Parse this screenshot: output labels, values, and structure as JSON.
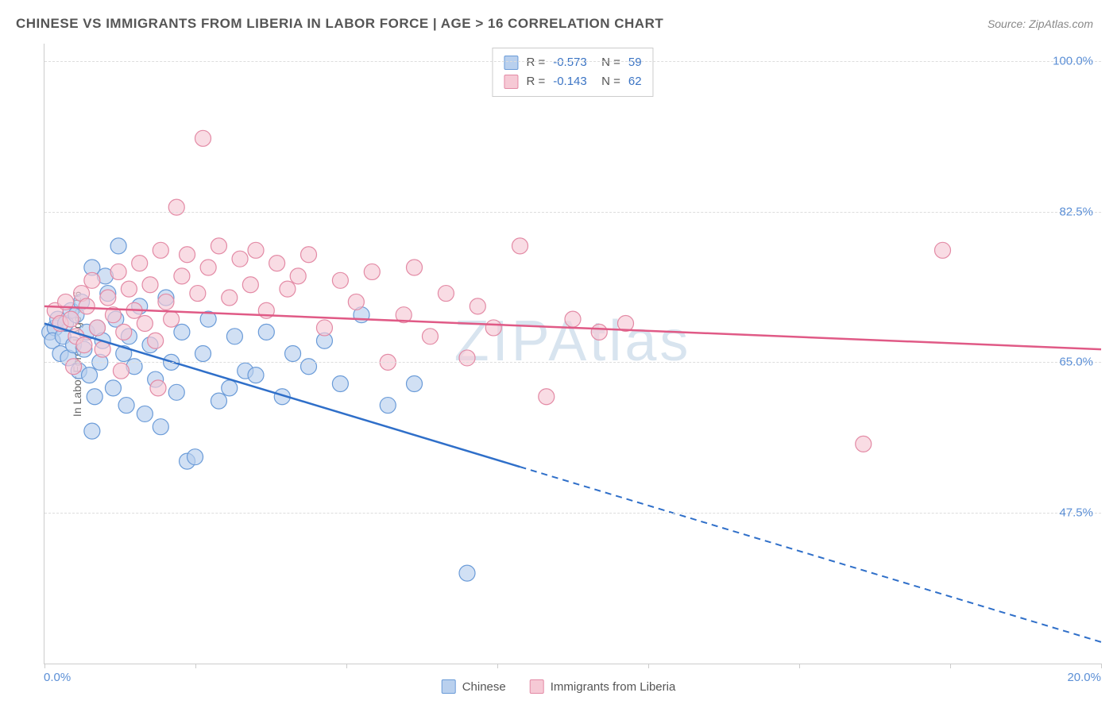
{
  "title": "CHINESE VS IMMIGRANTS FROM LIBERIA IN LABOR FORCE | AGE > 16 CORRELATION CHART",
  "source": "Source: ZipAtlas.com",
  "watermark": "ZIPAtlas",
  "y_axis_title": "In Labor Force | Age > 16",
  "chart": {
    "type": "scatter",
    "xlim": [
      0,
      20
    ],
    "ylim": [
      30,
      102
    ],
    "x_ticks": [
      0,
      2.86,
      5.71,
      8.57,
      11.43,
      14.29,
      17.14,
      20
    ],
    "x_labels": {
      "0": "0.0%",
      "20": "20.0%"
    },
    "y_gridlines": [
      47.5,
      65.0,
      82.5,
      100.0
    ],
    "y_labels": [
      "47.5%",
      "65.0%",
      "82.5%",
      "100.0%"
    ],
    "background_color": "#ffffff",
    "grid_color": "#dddddd",
    "axis_color": "#cccccc",
    "label_color": "#5b8fd6",
    "series": [
      {
        "name": "Chinese",
        "color_fill": "#b9d0ee",
        "color_stroke": "#6a9bd8",
        "line_color": "#2f6fc9",
        "marker_radius": 10,
        "marker_opacity": 0.65,
        "R": "-0.573",
        "N": "59",
        "trend": {
          "x1": 0,
          "y1": 69.5,
          "x2": 20,
          "y2": 32.5,
          "solid_until_x": 9.0
        },
        "points": [
          [
            0.1,
            68.5
          ],
          [
            0.2,
            69.0
          ],
          [
            0.15,
            67.5
          ],
          [
            0.25,
            70.0
          ],
          [
            0.3,
            66.0
          ],
          [
            0.35,
            68.0
          ],
          [
            0.4,
            69.5
          ],
          [
            0.45,
            65.5
          ],
          [
            0.5,
            71.0
          ],
          [
            0.55,
            67.0
          ],
          [
            0.6,
            70.5
          ],
          [
            0.65,
            64.0
          ],
          [
            0.7,
            72.0
          ],
          [
            0.75,
            66.5
          ],
          [
            0.8,
            68.5
          ],
          [
            0.85,
            63.5
          ],
          [
            0.9,
            76.0
          ],
          [
            0.95,
            61.0
          ],
          [
            1.0,
            69.0
          ],
          [
            1.05,
            65.0
          ],
          [
            1.1,
            67.5
          ],
          [
            1.2,
            73.0
          ],
          [
            1.3,
            62.0
          ],
          [
            1.35,
            70.0
          ],
          [
            1.4,
            78.5
          ],
          [
            1.5,
            66.0
          ],
          [
            1.55,
            60.0
          ],
          [
            1.6,
            68.0
          ],
          [
            1.7,
            64.5
          ],
          [
            1.8,
            71.5
          ],
          [
            1.9,
            59.0
          ],
          [
            2.0,
            67.0
          ],
          [
            2.1,
            63.0
          ],
          [
            2.2,
            57.5
          ],
          [
            2.3,
            72.5
          ],
          [
            2.4,
            65.0
          ],
          [
            2.5,
            61.5
          ],
          [
            2.6,
            68.5
          ],
          [
            2.7,
            53.5
          ],
          [
            2.85,
            54.0
          ],
          [
            3.0,
            66.0
          ],
          [
            3.1,
            70.0
          ],
          [
            3.3,
            60.5
          ],
          [
            3.5,
            62.0
          ],
          [
            3.6,
            68.0
          ],
          [
            3.8,
            64.0
          ],
          [
            4.0,
            63.5
          ],
          [
            4.2,
            68.5
          ],
          [
            4.5,
            61.0
          ],
          [
            4.7,
            66.0
          ],
          [
            5.0,
            64.5
          ],
          [
            5.3,
            67.5
          ],
          [
            5.6,
            62.5
          ],
          [
            6.0,
            70.5
          ],
          [
            6.5,
            60.0
          ],
          [
            7.0,
            62.5
          ],
          [
            8.0,
            40.5
          ],
          [
            0.9,
            57.0
          ],
          [
            1.15,
            75.0
          ]
        ]
      },
      {
        "name": "Immigrants from Liberia",
        "color_fill": "#f6c9d5",
        "color_stroke": "#e38aa5",
        "line_color": "#e05a86",
        "marker_radius": 10,
        "marker_opacity": 0.65,
        "R": "-0.143",
        "N": "62",
        "trend": {
          "x1": 0,
          "y1": 71.5,
          "x2": 20,
          "y2": 66.5,
          "solid_until_x": 20
        },
        "points": [
          [
            0.2,
            71.0
          ],
          [
            0.3,
            69.5
          ],
          [
            0.4,
            72.0
          ],
          [
            0.5,
            70.0
          ],
          [
            0.6,
            68.0
          ],
          [
            0.7,
            73.0
          ],
          [
            0.75,
            67.0
          ],
          [
            0.8,
            71.5
          ],
          [
            0.9,
            74.5
          ],
          [
            1.0,
            69.0
          ],
          [
            1.1,
            66.5
          ],
          [
            1.2,
            72.5
          ],
          [
            1.3,
            70.5
          ],
          [
            1.4,
            75.5
          ],
          [
            1.5,
            68.5
          ],
          [
            1.6,
            73.5
          ],
          [
            1.7,
            71.0
          ],
          [
            1.8,
            76.5
          ],
          [
            1.9,
            69.5
          ],
          [
            2.0,
            74.0
          ],
          [
            2.1,
            67.5
          ],
          [
            2.2,
            78.0
          ],
          [
            2.3,
            72.0
          ],
          [
            2.4,
            70.0
          ],
          [
            2.5,
            83.0
          ],
          [
            2.6,
            75.0
          ],
          [
            2.7,
            77.5
          ],
          [
            2.9,
            73.0
          ],
          [
            3.0,
            91.0
          ],
          [
            3.1,
            76.0
          ],
          [
            3.3,
            78.5
          ],
          [
            3.5,
            72.5
          ],
          [
            3.7,
            77.0
          ],
          [
            3.9,
            74.0
          ],
          [
            4.0,
            78.0
          ],
          [
            4.2,
            71.0
          ],
          [
            4.4,
            76.5
          ],
          [
            4.6,
            73.5
          ],
          [
            4.8,
            75.0
          ],
          [
            5.0,
            77.5
          ],
          [
            5.3,
            69.0
          ],
          [
            5.6,
            74.5
          ],
          [
            5.9,
            72.0
          ],
          [
            6.2,
            75.5
          ],
          [
            6.5,
            65.0
          ],
          [
            6.8,
            70.5
          ],
          [
            7.0,
            76.0
          ],
          [
            7.3,
            68.0
          ],
          [
            7.6,
            73.0
          ],
          [
            8.0,
            65.5
          ],
          [
            8.2,
            71.5
          ],
          [
            8.5,
            69.0
          ],
          [
            9.0,
            78.5
          ],
          [
            9.5,
            61.0
          ],
          [
            10.0,
            70.0
          ],
          [
            10.5,
            68.5
          ],
          [
            11.0,
            69.5
          ],
          [
            15.5,
            55.5
          ],
          [
            17.0,
            78.0
          ],
          [
            1.45,
            64.0
          ],
          [
            2.15,
            62.0
          ],
          [
            0.55,
            64.5
          ]
        ]
      }
    ]
  },
  "legend_bottom": [
    {
      "label": "Chinese",
      "fill": "#b9d0ee",
      "stroke": "#6a9bd8"
    },
    {
      "label": "Immigrants from Liberia",
      "fill": "#f6c9d5",
      "stroke": "#e38aa5"
    }
  ]
}
